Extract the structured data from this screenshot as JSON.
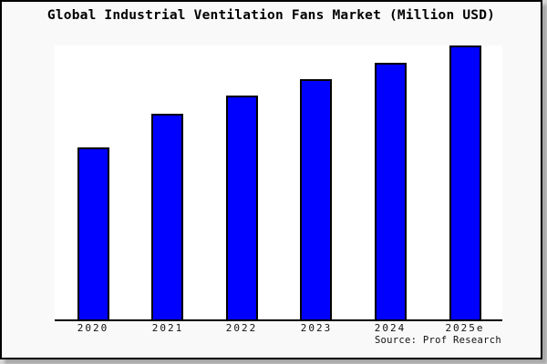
{
  "chart_data": {
    "type": "bar",
    "title": "Global Industrial Ventilation Fans Market (Million USD)",
    "categories": [
      "2020",
      "2021",
      "2022",
      "2023",
      "2024",
      "2025e"
    ],
    "values": [
      62.8,
      75.0,
      81.7,
      87.7,
      93.6,
      100
    ],
    "values_are_relative_estimates": true,
    "ylim": [
      0,
      100
    ],
    "xlabel": "",
    "ylabel": "",
    "y_axis_labels_visible": false,
    "grid": false,
    "legend": "none",
    "source": "Source: Prof Research",
    "colors": {
      "bar_fill": "#0000ff",
      "bar_border": "#000000",
      "plot_background": "#ffffff",
      "canvas_background": "#f9f9f9",
      "axis": "#000000",
      "text": "#000000"
    }
  }
}
